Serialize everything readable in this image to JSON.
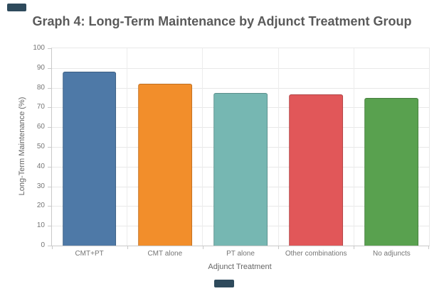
{
  "page": {
    "title": "Graph 4: Long-Term Maintenance by Adjunct Treatment Group"
  },
  "chart_data": {
    "type": "bar",
    "title": "Graph 4: Long-Term Maintenance by Adjunct Treatment Group",
    "categories": [
      "CMT+PT",
      "CMT alone",
      "PT alone",
      "Other combinations",
      "No adjuncts"
    ],
    "values": [
      88,
      82,
      77.5,
      76.5,
      75
    ],
    "bar_colors": [
      "#4e79a7",
      "#f28e2b",
      "#76b7b2",
      "#e15759",
      "#59a14f"
    ],
    "xlabel": "Adjunct Treatment",
    "ylabel": "Long-Term Maintenance (%)",
    "ylim": [
      0,
      100
    ],
    "yticks": [
      0,
      10,
      20,
      30,
      40,
      50,
      60,
      70,
      80,
      90,
      100
    ],
    "grid": true,
    "legend": "none"
  },
  "colors": {
    "title_text": "#5a5a5a",
    "axis_text": "#757575",
    "axis_title_text": "#666666",
    "gridline": "#e8e8e8",
    "band_separator": "#ececec",
    "axis_line": "#c9c9c9",
    "background": "#ffffff",
    "artifact_mark": "#2e4a5c"
  }
}
